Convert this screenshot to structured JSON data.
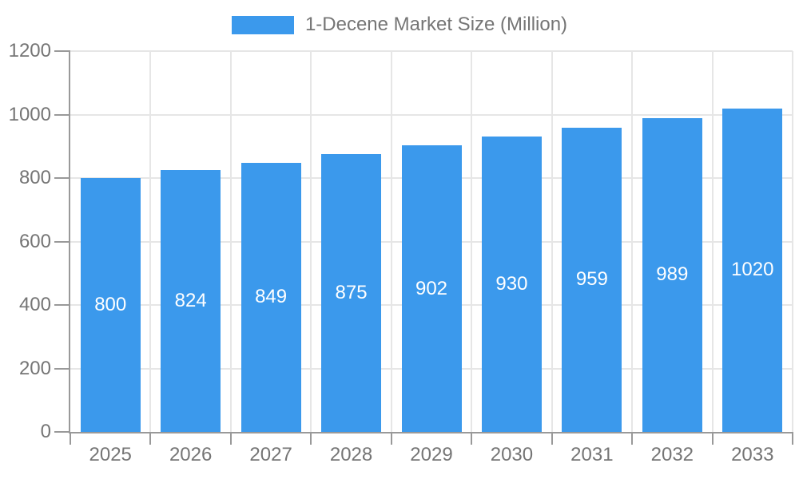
{
  "legend": {
    "label": "1-Decene Market Size (Million)"
  },
  "chart_data": {
    "type": "bar",
    "title": "1-Decene Market Size (Million)",
    "categories": [
      "2025",
      "2026",
      "2027",
      "2028",
      "2029",
      "2030",
      "2031",
      "2032",
      "2033"
    ],
    "values": [
      800,
      824,
      849,
      875,
      902,
      930,
      959,
      989,
      1020
    ],
    "xlabel": "",
    "ylabel": "",
    "ylim": [
      0,
      1200
    ],
    "yticks": [
      0,
      200,
      400,
      600,
      800,
      1000,
      1200
    ],
    "grid": true,
    "legend_position": "top-center",
    "bar_labels_visible": true,
    "colors": {
      "bar": "#3b99ec",
      "axis": "#999999",
      "grid": "#e6e6e6",
      "tick_label": "#757575",
      "bar_label": "#ffffff",
      "background": "#ffffff"
    }
  }
}
